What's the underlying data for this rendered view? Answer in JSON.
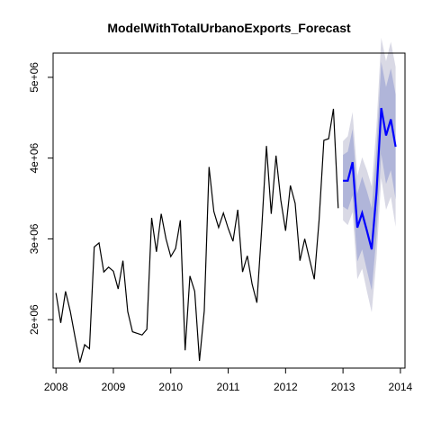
{
  "chart_data": {
    "type": "line",
    "title": "ModelWithTotalUrbanoExports_Forecast",
    "xlabel": "",
    "ylabel": "",
    "xlim": [
      2007.95,
      2014.08
    ],
    "ylim": [
      1400000,
      5300000
    ],
    "x_ticks": [
      2008,
      2009,
      2010,
      2011,
      2012,
      2013,
      2014
    ],
    "x_tick_labels": [
      "2008",
      "2009",
      "2010",
      "2011",
      "2012",
      "2013",
      "2014"
    ],
    "y_ticks": [
      2000000,
      3000000,
      4000000,
      5000000
    ],
    "y_tick_labels": [
      "2e+06",
      "3e+06",
      "4e+06",
      "5e+06"
    ],
    "series": [
      {
        "role": "observed",
        "color": "#000000",
        "x_start": 2008.0,
        "step": 0.0833333,
        "values": [
          2330000,
          1960000,
          2350000,
          2100000,
          1780000,
          1470000,
          1690000,
          1640000,
          2900000,
          2950000,
          2590000,
          2650000,
          2600000,
          2380000,
          2730000,
          2100000,
          1850000,
          1830000,
          1810000,
          1880000,
          3260000,
          2840000,
          3310000,
          3000000,
          2780000,
          2880000,
          3230000,
          1620000,
          2540000,
          2350000,
          1490000,
          2110000,
          3890000,
          3340000,
          3140000,
          3320000,
          3130000,
          2970000,
          3360000,
          2590000,
          2790000,
          2440000,
          2210000,
          3120000,
          4150000,
          3310000,
          4030000,
          3480000,
          3100000,
          3660000,
          3440000,
          2730000,
          3000000,
          2750000,
          2500000,
          3230000,
          4220000,
          4240000,
          4610000,
          3380000
        ]
      },
      {
        "role": "forecast",
        "color": "#0000ff",
        "x_start": 2013.0,
        "step": 0.0833333,
        "values": [
          3720000,
          3720000,
          3950000,
          3140000,
          3320000,
          3100000,
          2870000,
          3570000,
          4620000,
          4280000,
          4480000,
          4140000
        ],
        "interval_80": {
          "color": "#b0b5d9",
          "lower": [
            3400000,
            3360000,
            3540000,
            2720000,
            2870000,
            2610000,
            2360000,
            3030000,
            4050000,
            3680000,
            3850000,
            3490000
          ],
          "upper": [
            4040000,
            4080000,
            4360000,
            3560000,
            3770000,
            3590000,
            3380000,
            4110000,
            5190000,
            4880000,
            5110000,
            4790000
          ]
        },
        "interval_95": {
          "color": "#d9d9e5",
          "lower": [
            3230000,
            3170000,
            3330000,
            2500000,
            2630000,
            2350000,
            2090000,
            2750000,
            3750000,
            3360000,
            3520000,
            3150000
          ],
          "upper": [
            4210000,
            4270000,
            4570000,
            3780000,
            4010000,
            3850000,
            3650000,
            4390000,
            5490000,
            5200000,
            5440000,
            5130000
          ]
        }
      }
    ],
    "grid": false,
    "legend": "none"
  }
}
